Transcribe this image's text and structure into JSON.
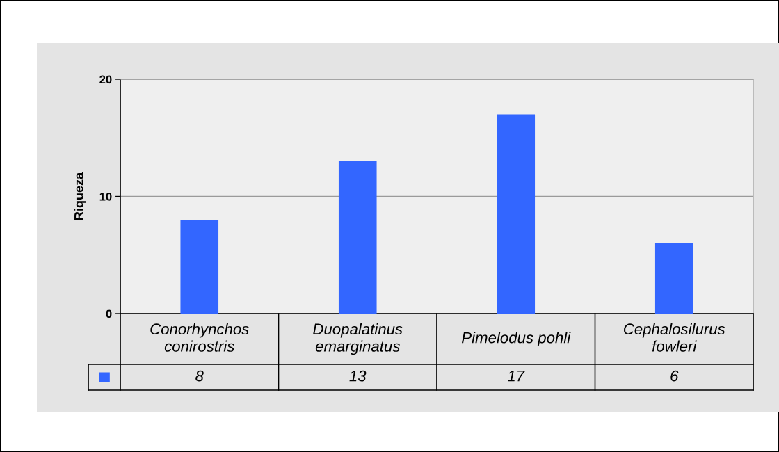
{
  "chart_data": {
    "type": "bar",
    "ylabel": "Riqueza",
    "categories": [
      "Conorhynchos conirostris",
      "Duopalatinus emarginatus",
      "Pimelodus pohli",
      "Cephalosilurus fowleri"
    ],
    "values": [
      8,
      13,
      17,
      6
    ],
    "color": "#3366ff",
    "ylim": [
      0,
      20
    ],
    "yticks": [
      0,
      10,
      20
    ],
    "grid": "y",
    "data_labels": true
  }
}
